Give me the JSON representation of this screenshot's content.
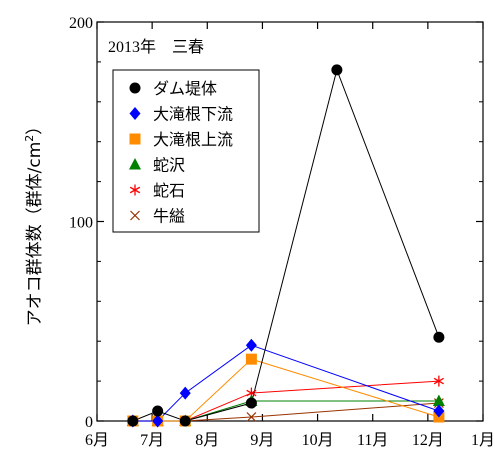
{
  "chart_data": {
    "type": "line",
    "annotation": "2013年　三春",
    "ylabel_main": "アオコ群体数（群体/cm",
    "ylabel_sup": "2",
    "ylabel_end": "）",
    "xlabel": "",
    "ylim": [
      0,
      200
    ],
    "yticks": [
      0,
      100,
      200
    ],
    "x_ticks": [
      {
        "label": "6月",
        "month": 6
      },
      {
        "label": "7月",
        "month": 7
      },
      {
        "label": "8月",
        "month": 8
      },
      {
        "label": "9月",
        "month": 9
      },
      {
        "label": "10月",
        "month": 10
      },
      {
        "label": "11月",
        "month": 11
      },
      {
        "label": "12月",
        "month": 12
      },
      {
        "label": "1月",
        "month": 13
      }
    ],
    "legend_position": "top-left",
    "grid": false,
    "series": [
      {
        "name": "ダム堤体",
        "marker": "circle",
        "color": "#000000",
        "x": [
          6.65,
          7.1,
          7.6,
          8.8,
          10.35,
          12.2
        ],
        "y": [
          0,
          5,
          0,
          9,
          176,
          42
        ]
      },
      {
        "name": "大滝根下流",
        "marker": "diamond",
        "color": "#0000ff",
        "x": [
          6.65,
          7.1,
          7.6,
          8.8,
          12.2
        ],
        "y": [
          0,
          0,
          14,
          38,
          5
        ]
      },
      {
        "name": "大滝根上流",
        "marker": "square",
        "color": "#ff8c00",
        "x": [
          6.65,
          7.1,
          7.6,
          8.8,
          12.2
        ],
        "y": [
          0,
          0,
          0,
          31,
          2
        ]
      },
      {
        "name": "蛇沢",
        "marker": "triangle",
        "color": "#008000",
        "x": [
          6.65,
          7.1,
          7.6,
          8.8,
          12.2
        ],
        "y": [
          0,
          0,
          0,
          10,
          10
        ]
      },
      {
        "name": "蛇石",
        "marker": "asterisk",
        "color": "#ff0000",
        "x": [
          6.65,
          7.1,
          7.6,
          8.8,
          12.2
        ],
        "y": [
          0,
          0,
          0,
          14,
          20
        ]
      },
      {
        "name": "牛縊",
        "marker": "x",
        "color": "#993300",
        "x": [
          6.65,
          7.1,
          7.6,
          8.8,
          12.2
        ],
        "y": [
          0,
          0,
          0,
          2,
          9
        ]
      }
    ]
  }
}
